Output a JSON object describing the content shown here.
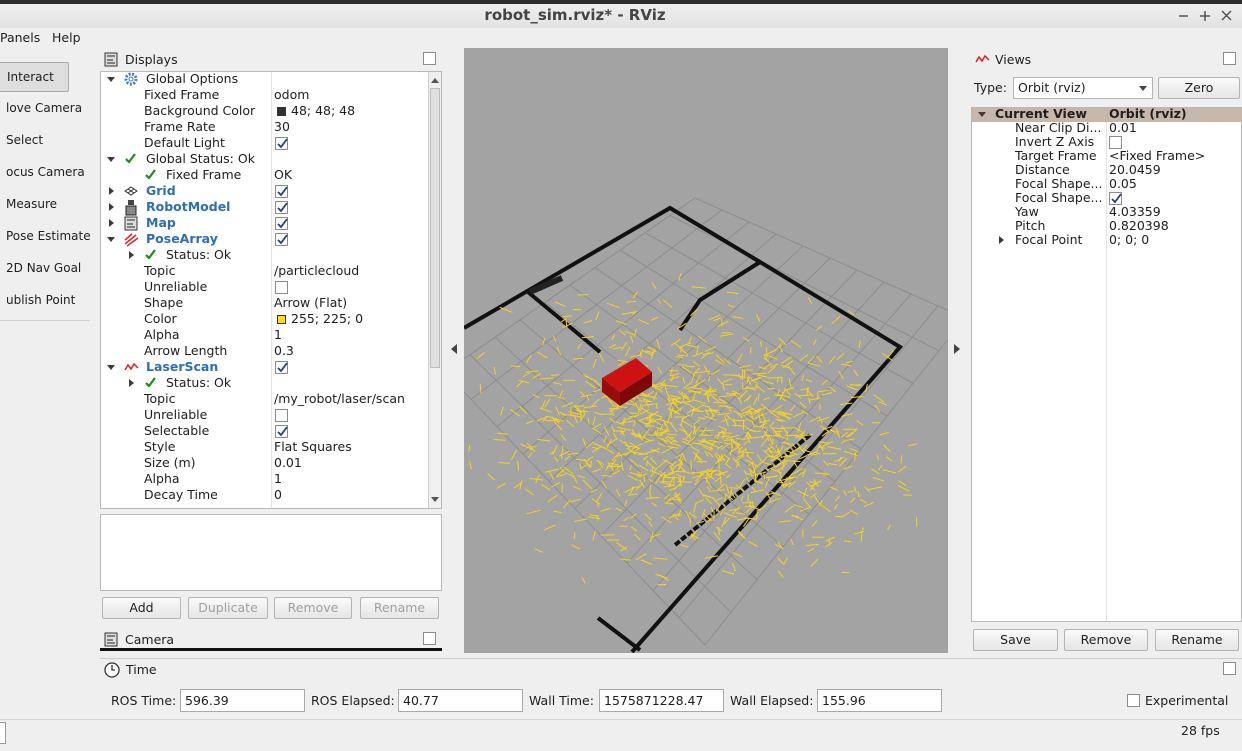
{
  "window": {
    "title": "robot_sim.rviz* - RViz"
  },
  "menu": [
    "Panels",
    "Help"
  ],
  "tools": [
    "Interact",
    "love Camera",
    "Select",
    "ocus Camera",
    "Measure",
    "Pose Estimate",
    "2D Nav Goal",
    "ublish Point"
  ],
  "displays": {
    "title": "Displays",
    "rows": [
      {
        "label": "Global Options",
        "depth": 0,
        "expander": "open",
        "icon": "gear"
      },
      {
        "label": "Fixed Frame",
        "value": "odom",
        "depth": 1
      },
      {
        "label": "Background Color",
        "value": "48; 48; 48",
        "depth": 1,
        "swatch": "#303030"
      },
      {
        "label": "Frame Rate",
        "value": "30",
        "depth": 1
      },
      {
        "label": "Default Light",
        "depth": 1,
        "checkbox": true
      },
      {
        "label": "Global Status: Ok",
        "depth": 0,
        "expander": "open",
        "icon": "check"
      },
      {
        "label": "Fixed Frame",
        "value": "OK",
        "depth": 1,
        "icon": "check"
      },
      {
        "label": "Grid",
        "depth": 0,
        "expander": "closed",
        "icon": "grid",
        "bold": true,
        "checkbox": true
      },
      {
        "label": "RobotModel",
        "depth": 0,
        "expander": "closed",
        "icon": "robot",
        "bold": true,
        "checkbox": true
      },
      {
        "label": "Map",
        "depth": 0,
        "expander": "closed",
        "icon": "map",
        "bold": true,
        "checkbox": true
      },
      {
        "label": "PoseArray",
        "depth": 0,
        "expander": "open",
        "icon": "pose",
        "bold": true,
        "checkbox": true
      },
      {
        "label": "Status: Ok",
        "depth": 1,
        "expander": "closed",
        "icon": "check"
      },
      {
        "label": "Topic",
        "value": "/particlecloud",
        "depth": 1
      },
      {
        "label": "Unreliable",
        "depth": 1,
        "checkbox": false
      },
      {
        "label": "Shape",
        "value": "Arrow (Flat)",
        "depth": 1
      },
      {
        "label": "Color",
        "value": "255; 225; 0",
        "depth": 1,
        "swatch": "#ffe100"
      },
      {
        "label": "Alpha",
        "value": "1",
        "depth": 1
      },
      {
        "label": "Arrow Length",
        "value": "0.3",
        "depth": 1
      },
      {
        "label": "LaserScan",
        "depth": 0,
        "expander": "open",
        "icon": "laser",
        "bold": true,
        "checkbox": true
      },
      {
        "label": "Status: Ok",
        "depth": 1,
        "expander": "closed",
        "icon": "check"
      },
      {
        "label": "Topic",
        "value": "/my_robot/laser/scan",
        "depth": 1
      },
      {
        "label": "Unreliable",
        "depth": 1,
        "checkbox": false
      },
      {
        "label": "Selectable",
        "depth": 1,
        "checkbox": true
      },
      {
        "label": "Style",
        "value": "Flat Squares",
        "depth": 1
      },
      {
        "label": "Size (m)",
        "value": "0.01",
        "depth": 1
      },
      {
        "label": "Alpha",
        "value": "1",
        "depth": 1
      },
      {
        "label": "Decay Time",
        "value": "0",
        "depth": 1
      }
    ],
    "buttons": [
      {
        "label": "Add",
        "enabled": true
      },
      {
        "label": "Duplicate",
        "enabled": false
      },
      {
        "label": "Remove",
        "enabled": false
      },
      {
        "label": "Rename",
        "enabled": false
      }
    ]
  },
  "camera": {
    "title": "Camera"
  },
  "views": {
    "title": "Views",
    "type_label": "Type:",
    "type_value": "Orbit (rviz)",
    "zero": "Zero",
    "header": {
      "label": "Current View",
      "value": "Orbit (rviz)"
    },
    "rows": [
      {
        "label": "Near Clip Di...",
        "value": "0.01"
      },
      {
        "label": "Invert Z Axis",
        "checkbox": false
      },
      {
        "label": "Target Frame",
        "value": "<Fixed Frame>"
      },
      {
        "label": "Distance",
        "value": "20.0459"
      },
      {
        "label": "Focal Shape...",
        "value": "0.05"
      },
      {
        "label": "Focal Shape...",
        "checkbox": true
      },
      {
        "label": "Yaw",
        "value": "4.03359"
      },
      {
        "label": "Pitch",
        "value": "0.820398"
      },
      {
        "label": "Focal Point",
        "value": "0; 0; 0",
        "expander": "closed"
      }
    ],
    "buttons": [
      "Save",
      "Remove",
      "Rename"
    ]
  },
  "time": {
    "title": "Time",
    "fields": [
      {
        "label": "ROS Time:",
        "value": "596.39"
      },
      {
        "label": "ROS Elapsed:",
        "value": "40.77"
      },
      {
        "label": "Wall Time:",
        "value": "1575871228.47"
      },
      {
        "label": "Wall Elapsed:",
        "value": "155.96"
      }
    ],
    "experimental": "Experimental"
  },
  "status": {
    "fps": "28 fps"
  }
}
